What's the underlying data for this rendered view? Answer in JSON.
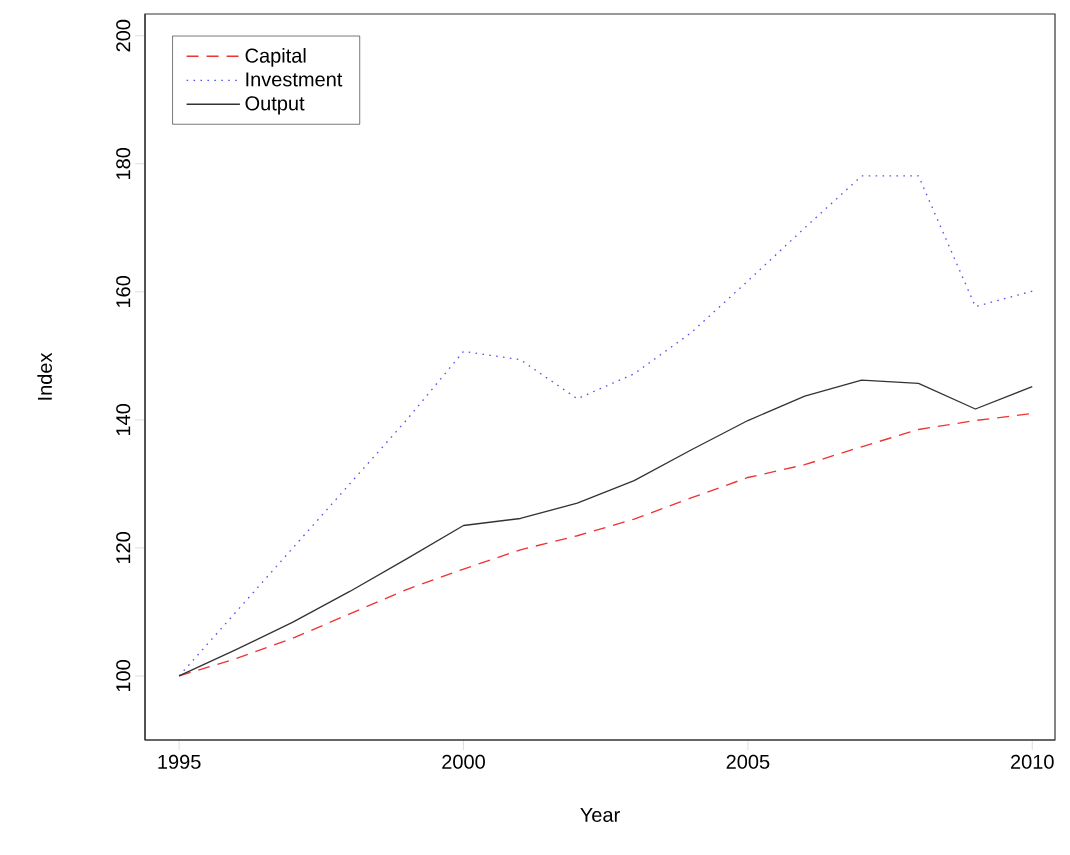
{
  "chart_data": {
    "type": "line",
    "xlabel": "Year",
    "ylabel": "Index",
    "x": [
      1995,
      1996,
      1997,
      1998,
      1999,
      2000,
      2001,
      2002,
      2003,
      2004,
      2005,
      2006,
      2007,
      2008,
      2009,
      2010
    ],
    "series": [
      {
        "name": "Capital",
        "color": "#ee3333",
        "line_style": "dashed",
        "values": [
          100,
          102.7,
          105.9,
          109.7,
          113.5,
          116.7,
          119.7,
          121.9,
          124.5,
          127.8,
          131,
          133,
          135.8,
          138.5,
          139.9,
          141
        ]
      },
      {
        "name": "Investment",
        "color": "#5555ee",
        "line_style": "dotted",
        "values": [
          100,
          110,
          120,
          130,
          140,
          150.7,
          149.4,
          143.3,
          147.2,
          153.6,
          161.7,
          170,
          178.1,
          178.1,
          157.7,
          160.1
        ]
      },
      {
        "name": "Output",
        "color": "#333333",
        "line_style": "solid",
        "values": [
          100,
          104.1,
          108.4,
          113.2,
          118.3,
          123.5,
          124.6,
          127,
          130.5,
          135.3,
          139.9,
          143.7,
          146.2,
          145.7,
          141.7,
          145.2
        ]
      }
    ],
    "xlim": [
      1994.4,
      2010.4
    ],
    "ylim": [
      90,
      203.4
    ],
    "xticks": [
      1995,
      2000,
      2005,
      2010
    ],
    "yticks": [
      100,
      120,
      140,
      160,
      180,
      200
    ],
    "grid": false,
    "legend": "top left",
    "marker": "none"
  }
}
